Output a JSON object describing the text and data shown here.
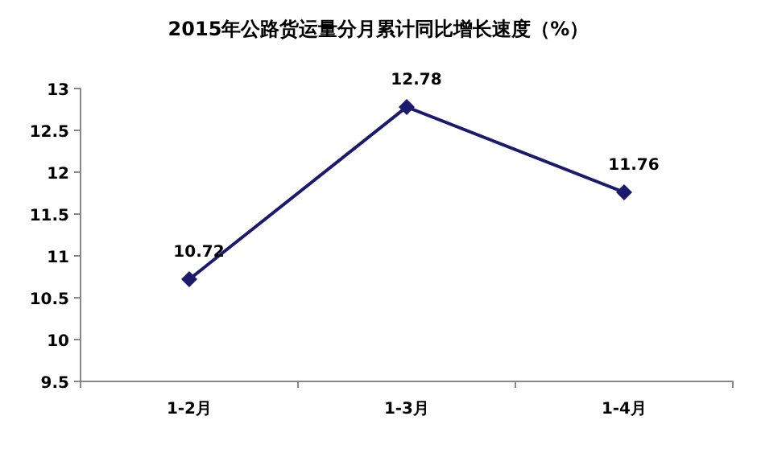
{
  "chart_data": {
    "type": "line",
    "title": "2015年公路货运量分月累计同比增长速度（%）",
    "categories": [
      "1-2月",
      "1-3月",
      "1-4月"
    ],
    "series": [
      {
        "color": "#1a1a6e",
        "values": [
          10.72,
          12.78,
          11.76
        ]
      }
    ],
    "ylim": [
      9.5,
      13
    ],
    "yticks": [
      {
        "value": 9.5,
        "label": "9.5"
      },
      10,
      {
        "value": 10.5,
        "label": "10.5"
      },
      11,
      {
        "value": 11.5,
        "label": "11.5"
      },
      12,
      {
        "value": 12.5,
        "label": "12.5"
      },
      13
    ],
    "data_labels": true,
    "marker": "diamond",
    "grid": false
  }
}
